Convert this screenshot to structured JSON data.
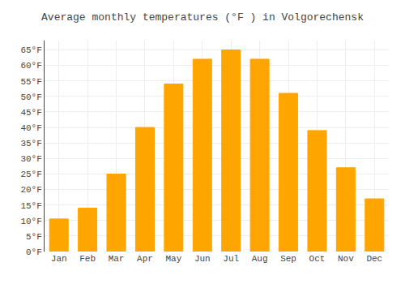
{
  "chart_data": {
    "type": "bar",
    "title": "Average monthly temperatures (°F ) in Volgorechensk",
    "categories": [
      "Jan",
      "Feb",
      "Mar",
      "Apr",
      "May",
      "Jun",
      "Jul",
      "Aug",
      "Sep",
      "Oct",
      "Nov",
      "Dec"
    ],
    "values": [
      10.5,
      14.0,
      25.0,
      40.0,
      54.0,
      62.0,
      65.0,
      62.0,
      51.0,
      39.0,
      27.0,
      17.0
    ],
    "color": "#FFA500",
    "ylim": [
      0,
      68
    ],
    "yticks": [
      {
        "value": 0,
        "label": "0°F"
      },
      {
        "value": 5,
        "label": "5°F"
      },
      {
        "value": 10,
        "label": "10°F"
      },
      {
        "value": 15,
        "label": "15°F"
      },
      {
        "value": 20,
        "label": "20°F"
      },
      {
        "value": 25,
        "label": "25°F"
      },
      {
        "value": 30,
        "label": "30°F"
      },
      {
        "value": 35,
        "label": "35°F"
      },
      {
        "value": 40,
        "label": "40°F"
      },
      {
        "value": 45,
        "label": "45°F"
      },
      {
        "value": 50,
        "label": "50°F"
      },
      {
        "value": 55,
        "label": "55°F"
      },
      {
        "value": 60,
        "label": "60°F"
      },
      {
        "value": 65,
        "label": "65°F"
      }
    ],
    "grid": true
  }
}
